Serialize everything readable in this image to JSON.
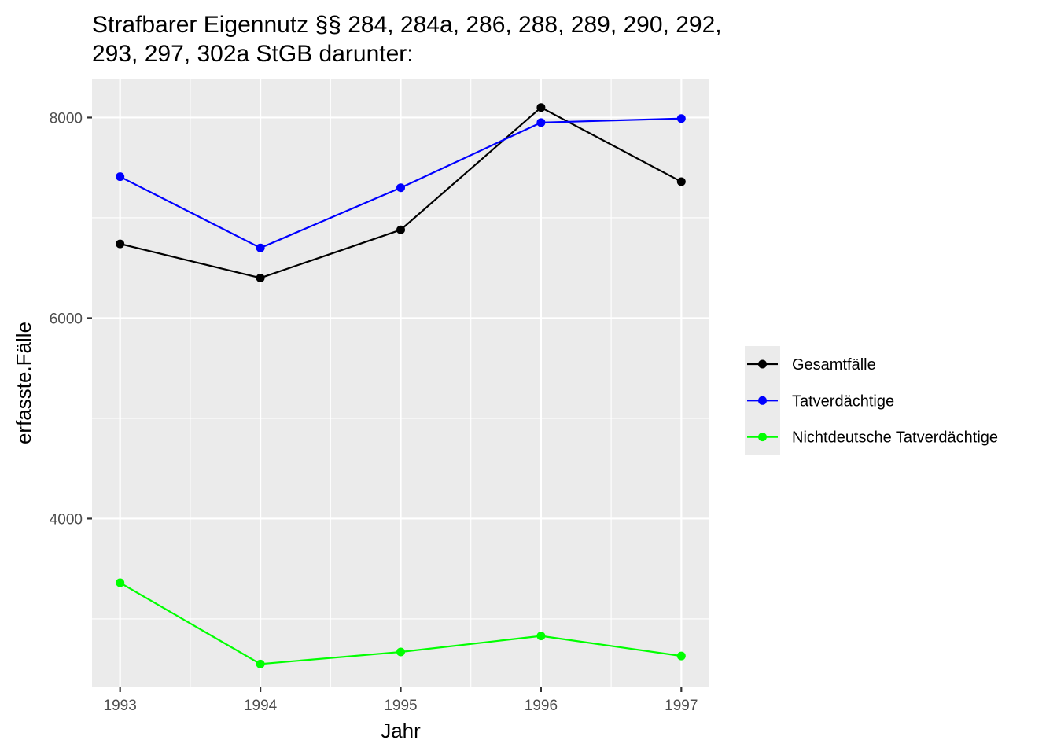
{
  "chart_data": {
    "type": "line",
    "title": "Strafbarer Eigennutz §§ 284, 284a, 286, 288, 289, 290, 292, 293, 297, 302a StGB darunter:",
    "title_lines": [
      "Strafbarer Eigennutz §§ 284, 284a, 286, 288, 289, 290, 292,",
      "293, 297, 302a StGB darunter:"
    ],
    "xlabel": "Jahr",
    "ylabel": "erfasste.Fälle",
    "x": [
      1993,
      1994,
      1995,
      1996,
      1997
    ],
    "x_tick_labels": [
      "1993",
      "1994",
      "1995",
      "1996",
      "1997"
    ],
    "xlim": [
      1992.8,
      1997.2
    ],
    "y_tick_values": [
      4000,
      6000,
      8000
    ],
    "y_tick_labels": [
      "4000",
      "6000",
      "8000"
    ],
    "y_minor_values": [
      3000,
      5000,
      7000
    ],
    "ylim": [
      2325,
      8380
    ],
    "grid": true,
    "panel_background": "#ebebeb",
    "grid_color": "#ffffff",
    "legend_position": "right",
    "series": [
      {
        "name": "Gesamtfälle",
        "color": "#000000",
        "values": [
          6740,
          6400,
          6880,
          8100,
          7360
        ]
      },
      {
        "name": "Tatverdächtige",
        "color": "#0000ff",
        "values": [
          7410,
          6700,
          7300,
          7950,
          7990
        ]
      },
      {
        "name": "Nichtdeutsche Tatverdächtige",
        "color": "#00ff00",
        "values": [
          3360,
          2550,
          2670,
          2830,
          2630
        ]
      }
    ]
  }
}
